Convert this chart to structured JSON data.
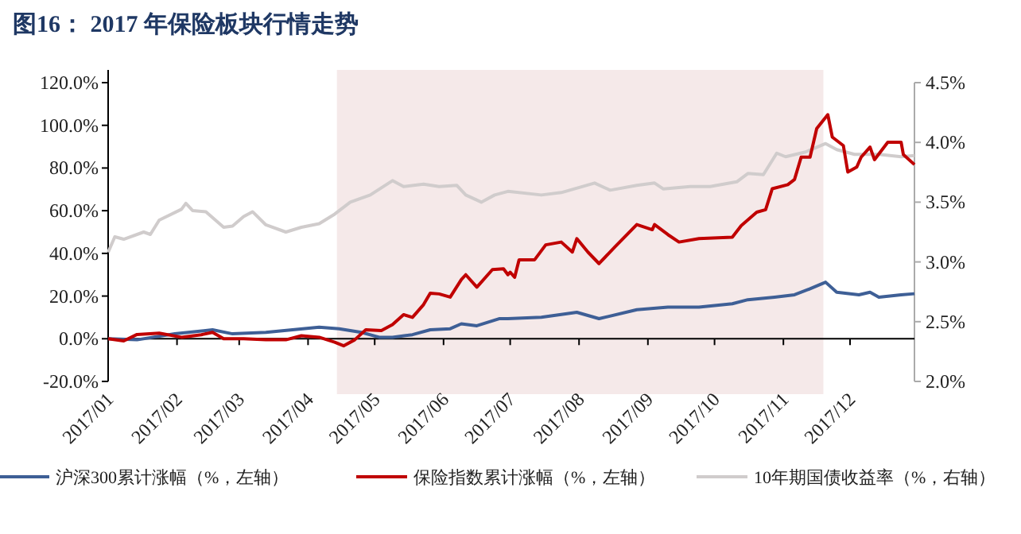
{
  "chart_data": {
    "type": "line",
    "title": "图16：  2017 年保险板块行情走势",
    "legend": "bottom",
    "xlim": [
      "2017-01-01",
      "2017-12-30"
    ],
    "xticks": [
      {
        "value": "2017-01-01",
        "label": "2017/01"
      },
      {
        "value": "2017-02-01",
        "label": "2017/02"
      },
      {
        "value": "2017-03-01",
        "label": "2017/03"
      },
      {
        "value": "2017-04-01",
        "label": "2017/04"
      },
      {
        "value": "2017-05-01",
        "label": "2017/05"
      },
      {
        "value": "2017-06-01",
        "label": "2017/06"
      },
      {
        "value": "2017-07-01",
        "label": "2017/07"
      },
      {
        "value": "2017-08-01",
        "label": "2017/08"
      },
      {
        "value": "2017-09-01",
        "label": "2017/09"
      },
      {
        "value": "2017-10-01",
        "label": "2017/10"
      },
      {
        "value": "2017-11-01",
        "label": "2017/11"
      },
      {
        "value": "2017-12-01",
        "label": "2017/12"
      }
    ],
    "ylim": [
      -20,
      120
    ],
    "yticks": [
      {
        "value": -20,
        "label": "-20.0%"
      },
      {
        "value": 0,
        "label": "0.0%"
      },
      {
        "value": 20,
        "label": "20.0%"
      },
      {
        "value": 40,
        "label": "40.0%"
      },
      {
        "value": 60,
        "label": "60.0%"
      },
      {
        "value": 80,
        "label": "80.0%"
      },
      {
        "value": 100,
        "label": "100.0%"
      },
      {
        "value": 120,
        "label": "120.0%"
      }
    ],
    "y2lim": [
      2.0,
      4.5
    ],
    "y2ticks": [
      {
        "value": 2.0,
        "label": "2.0%"
      },
      {
        "value": 2.5,
        "label": "2.5%"
      },
      {
        "value": 3.0,
        "label": "3.0%"
      },
      {
        "value": 3.5,
        "label": "3.5%"
      },
      {
        "value": 4.0,
        "label": "4.0%"
      },
      {
        "value": 4.5,
        "label": "4.5%"
      }
    ],
    "bands": [
      {
        "axis": "x",
        "from": "2017-04-14",
        "to": "2017-11-19",
        "color": "#f5e9e9"
      }
    ],
    "series": [
      {
        "name": "沪深300累计涨幅（%，左轴）",
        "color": "#3e5f96",
        "x": [
          "2017-01-01",
          "2017-01-14",
          "2017-01-31",
          "2017-02-17",
          "2017-02-26",
          "2017-03-13",
          "2017-03-25",
          "2017-04-06",
          "2017-04-15",
          "2017-04-25",
          "2017-05-03",
          "2017-05-09",
          "2017-05-18",
          "2017-05-26",
          "2017-06-04",
          "2017-06-09",
          "2017-06-16",
          "2017-06-26",
          "2017-06-30",
          "2017-07-15",
          "2017-07-31",
          "2017-08-10",
          "2017-08-27",
          "2017-09-10",
          "2017-09-24",
          "2017-10-09",
          "2017-10-16",
          "2017-10-28",
          "2017-11-06",
          "2017-11-13",
          "2017-11-20",
          "2017-11-25",
          "2017-12-05",
          "2017-12-10",
          "2017-12-14",
          "2017-12-24",
          "2017-12-30"
        ],
        "values": [
          0,
          -0.5,
          2.3,
          4.2,
          2.3,
          3,
          4.2,
          5.4,
          4.7,
          3,
          0.7,
          0.7,
          1.9,
          4.2,
          4.7,
          7,
          6.1,
          9.4,
          9.4,
          10.1,
          12.4,
          9.4,
          13.6,
          14.8,
          14.8,
          16.4,
          18.3,
          19.5,
          20.6,
          23.4,
          26.5,
          21.8,
          20.6,
          21.8,
          19.5,
          20.6,
          21.1
        ]
      },
      {
        "name": "保险指数累计涨幅（%，左轴）",
        "color": "#c00000",
        "x": [
          "2017-01-01",
          "2017-01-08",
          "2017-01-14",
          "2017-01-24",
          "2017-02-03",
          "2017-02-12",
          "2017-02-17",
          "2017-02-22",
          "2017-03-03",
          "2017-03-13",
          "2017-03-22",
          "2017-03-29",
          "2017-04-06",
          "2017-04-13",
          "2017-04-17",
          "2017-04-22",
          "2017-04-27",
          "2017-05-04",
          "2017-05-09",
          "2017-05-14",
          "2017-05-18",
          "2017-05-23",
          "2017-05-26",
          "2017-05-30",
          "2017-06-04",
          "2017-06-09",
          "2017-06-11",
          "2017-06-16",
          "2017-06-23",
          "2017-06-28",
          "2017-06-30",
          "2017-07-01",
          "2017-07-03",
          "2017-07-05",
          "2017-07-12",
          "2017-07-17",
          "2017-07-24",
          "2017-07-29",
          "2017-07-31",
          "2017-08-05",
          "2017-08-10",
          "2017-08-17",
          "2017-08-27",
          "2017-09-03",
          "2017-09-04",
          "2017-09-10",
          "2017-09-15",
          "2017-09-24",
          "2017-10-09",
          "2017-10-13",
          "2017-10-20",
          "2017-10-24",
          "2017-10-27",
          "2017-11-03",
          "2017-11-06",
          "2017-11-09",
          "2017-11-13",
          "2017-11-16",
          "2017-11-21",
          "2017-11-23",
          "2017-11-28",
          "2017-11-30",
          "2017-12-04",
          "2017-12-06",
          "2017-12-10",
          "2017-12-12",
          "2017-12-18",
          "2017-12-24",
          "2017-12-25",
          "2017-12-30"
        ],
        "values": [
          0,
          -1,
          2,
          2.6,
          0.7,
          1.9,
          3,
          0,
          0,
          -0.5,
          -0.5,
          1.4,
          0.7,
          -1.6,
          -3.3,
          -0.5,
          4.2,
          3.8,
          6.6,
          11.3,
          10,
          16,
          21.3,
          21,
          19.5,
          27.7,
          30,
          24.2,
          32.4,
          32.8,
          30,
          31.2,
          28.8,
          37,
          37,
          44,
          45.3,
          40.6,
          46.9,
          40.6,
          35.2,
          42.9,
          53.5,
          51.1,
          53.5,
          48.8,
          45.3,
          46.9,
          47.6,
          53,
          59.3,
          60.5,
          70.3,
          72.2,
          74.6,
          85.1,
          85.1,
          98.5,
          105,
          94.5,
          90.5,
          78.1,
          80.4,
          85.1,
          89.8,
          83.9,
          92.1,
          92.1,
          86.3,
          81.6
        ]
      },
      {
        "name": "10年期国债收益率（%，右轴）",
        "color": "#d0cccc",
        "axis": "y2",
        "x": [
          "2017-01-01",
          "2017-01-04",
          "2017-01-08",
          "2017-01-17",
          "2017-01-20",
          "2017-01-24",
          "2017-02-03",
          "2017-02-05",
          "2017-02-08",
          "2017-02-14",
          "2017-02-22",
          "2017-02-26",
          "2017-03-03",
          "2017-03-07",
          "2017-03-13",
          "2017-03-22",
          "2017-03-29",
          "2017-04-06",
          "2017-04-13",
          "2017-04-20",
          "2017-04-29",
          "2017-05-09",
          "2017-05-14",
          "2017-05-23",
          "2017-05-30",
          "2017-06-07",
          "2017-06-11",
          "2017-06-18",
          "2017-06-24",
          "2017-06-30",
          "2017-07-15",
          "2017-07-24",
          "2017-08-08",
          "2017-08-15",
          "2017-08-27",
          "2017-09-04",
          "2017-09-08",
          "2017-09-20",
          "2017-09-29",
          "2017-10-11",
          "2017-10-16",
          "2017-10-23",
          "2017-10-29",
          "2017-11-02",
          "2017-11-11",
          "2017-11-20",
          "2017-11-25",
          "2017-12-03",
          "2017-12-14",
          "2017-12-24",
          "2017-12-30"
        ],
        "values": [
          3.08,
          3.21,
          3.19,
          3.25,
          3.23,
          3.35,
          3.44,
          3.49,
          3.43,
          3.42,
          3.29,
          3.3,
          3.38,
          3.42,
          3.31,
          3.25,
          3.29,
          3.32,
          3.4,
          3.5,
          3.56,
          3.68,
          3.63,
          3.65,
          3.63,
          3.64,
          3.56,
          3.5,
          3.56,
          3.59,
          3.56,
          3.58,
          3.66,
          3.6,
          3.64,
          3.66,
          3.61,
          3.63,
          3.63,
          3.67,
          3.74,
          3.73,
          3.91,
          3.88,
          3.92,
          3.99,
          3.94,
          3.9,
          3.9,
          3.88,
          3.89
        ]
      }
    ]
  }
}
